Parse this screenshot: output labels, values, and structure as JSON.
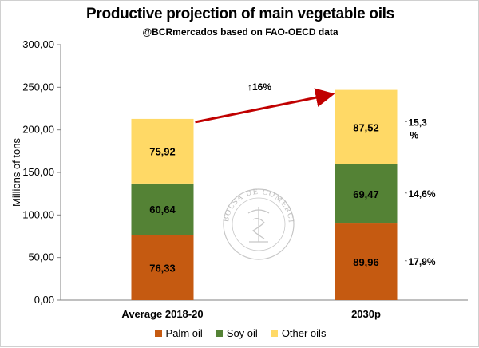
{
  "chart_data": {
    "type": "bar",
    "stacked": true,
    "title": "Productive projection of main vegetable oils",
    "subtitle": "@BCRmercados based on FAO-OECD data",
    "ylabel": "Millions of tons",
    "ylim": [
      0,
      300
    ],
    "yticks": [
      "0,00",
      "50,00",
      "100,00",
      "150,00",
      "200,00",
      "250,00",
      "300,00"
    ],
    "categories": [
      "Average 2018-20",
      "2030p"
    ],
    "series": [
      {
        "name": "Palm oil",
        "color": "#c55a11",
        "values": [
          76.33,
          89.96
        ],
        "labels": [
          "76,33",
          "89,96"
        ]
      },
      {
        "name": "Soy oil",
        "color": "#548235",
        "values": [
          60.64,
          69.47
        ],
        "labels": [
          "60,64",
          "69,47"
        ]
      },
      {
        "name": "Other oils",
        "color": "#ffd966",
        "values": [
          75.92,
          87.52
        ],
        "labels": [
          "75,92",
          "87,52"
        ]
      }
    ],
    "total_growth_label": "↑16%",
    "growth_labels": [
      "↑17,9%",
      "↑14,6%",
      "↑15,3 %"
    ],
    "arrow_color": "#c00000",
    "grid": false,
    "legend_position": "bottom"
  },
  "watermark": {
    "text": "BOLSA DE COMERCIO DE ROSARIO",
    "icon": "caduceus-seal-icon"
  }
}
